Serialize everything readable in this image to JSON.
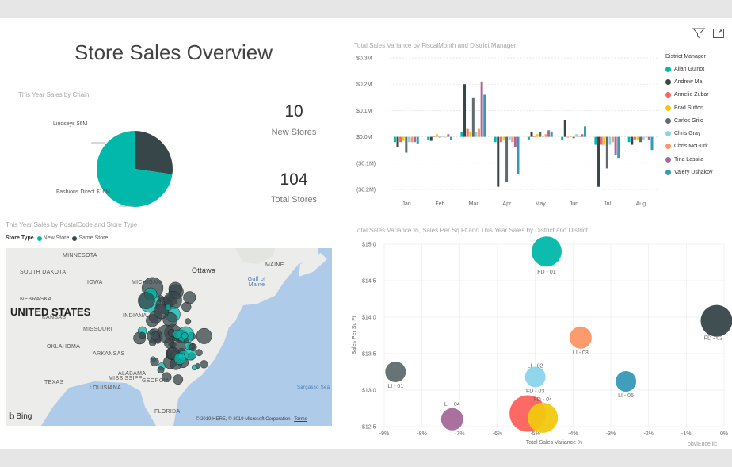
{
  "report": {
    "title": "Store Sales Overview"
  },
  "pie": {
    "title": "This Year Sales by Chain",
    "slices": [
      {
        "label": "Lindseys $6M",
        "value": 6,
        "color": "#374649"
      },
      {
        "label": "Fashions Direct $16M",
        "value": 16,
        "color": "#01b8aa"
      }
    ]
  },
  "kpis": {
    "new_stores": {
      "value": "10",
      "label": "New Stores"
    },
    "total_stores": {
      "value": "104",
      "label": "Total Stores"
    }
  },
  "map": {
    "title": "This Year Sales by PostalCode and Store Type",
    "legend_label": "Store Type",
    "legend_items": [
      {
        "label": "New Store",
        "color": "#01b8aa"
      },
      {
        "label": "Same Store",
        "color": "#374649"
      }
    ],
    "places": [
      "MINNESOTA",
      "SOUTH DAKOTA",
      "IOWA",
      "NEBRASKA",
      "KANSAS",
      "MISSOURI",
      "OKLAHOMA",
      "ARKANSAS",
      "TEXAS",
      "LOUISIANA",
      "MISSISSIPPI",
      "ALABAMA",
      "GEORGIA",
      "FLORIDA",
      "INDIANA",
      "MICHIGAN",
      "MAINE",
      "Ottawa",
      "Gulf of Maine",
      "Sargasso Sea"
    ],
    "country": "UNITED STATES",
    "bing": "Bing",
    "copyright": "© 2019 HERE, © 2019 Microsoft Corporation",
    "terms": "Terms"
  },
  "toolbar": {
    "filter_icon": "funnel-icon",
    "focus_icon": "focus-mode-icon"
  },
  "footer": {
    "text": "obviEnce llc"
  },
  "bar_chart_data": {
    "type": "bar",
    "title": "Total Sales Variance by FiscalMonth and District Manager",
    "categories": [
      "Jan",
      "Feb",
      "Mar",
      "Apr",
      "May",
      "Jun",
      "Jul",
      "Aug"
    ],
    "yticks": [
      "$0.3M",
      "$0.2M",
      "$0.1M",
      "$0.0M",
      "($0.1M)",
      "($0.2M)"
    ],
    "ylim": [
      -0.2,
      0.3
    ],
    "legend_title": "District Manager",
    "series": [
      {
        "name": "Allan Guinot",
        "color": "#01b8aa",
        "values": [
          -0.02,
          -0.01,
          0.02,
          -0.02,
          -0.01,
          -0.01,
          -0.03,
          -0.02
        ]
      },
      {
        "name": "Andrew Ma",
        "color": "#374649",
        "values": [
          -0.04,
          -0.015,
          0.2,
          -0.19,
          0.02,
          0.065,
          -0.19,
          -0.03
        ]
      },
      {
        "name": "Annelie Zubar",
        "color": "#fd625e",
        "values": [
          -0.02,
          0.005,
          0.03,
          -0.02,
          0.005,
          0.0,
          -0.03,
          -0.01
        ]
      },
      {
        "name": "Brad Sutton",
        "color": "#f2c80f",
        "values": [
          -0.015,
          0.01,
          0.02,
          -0.01,
          0.01,
          0.005,
          -0.03,
          -0.01
        ]
      },
      {
        "name": "Carlos Grilo",
        "color": "#5f6b6d",
        "values": [
          -0.06,
          0.0,
          0.15,
          -0.17,
          0.02,
          -0.005,
          -0.12,
          -0.02
        ]
      },
      {
        "name": "Chris Gray",
        "color": "#8ad4eb",
        "values": [
          -0.02,
          0.005,
          0.02,
          -0.01,
          0.005,
          0.01,
          -0.03,
          -0.01
        ]
      },
      {
        "name": "Chris McGurk",
        "color": "#fe9666",
        "values": [
          -0.02,
          0.0,
          0.03,
          -0.02,
          0.01,
          0.005,
          -0.02,
          0.0
        ]
      },
      {
        "name": "Tina Lassila",
        "color": "#a66999",
        "values": [
          -0.02,
          0.01,
          0.21,
          -0.04,
          0.025,
          0.01,
          -0.07,
          -0.01
        ]
      },
      {
        "name": "Valery Ushakov",
        "color": "#3599b8",
        "values": [
          -0.025,
          -0.01,
          0.16,
          -0.14,
          0.02,
          0.04,
          -0.08,
          -0.05
        ]
      }
    ]
  },
  "scatter_chart_data": {
    "type": "scatter",
    "title": "Total Sales Variance %, Sales Per Sq Ft and This Year Sales by District and District",
    "xlabel": "Total Sales Variance %",
    "ylabel": "Sales Per Sq Ft",
    "xlim": [
      -9,
      0
    ],
    "ylim": [
      12.5,
      15.0
    ],
    "xticks": [
      "-9%",
      "-8%",
      "-7%",
      "-6%",
      "-5%",
      "-4%",
      "-3%",
      "-2%",
      "-1%",
      "0%"
    ],
    "yticks": [
      "$15.0",
      "$14.5",
      "$14.0",
      "$13.5",
      "$13.0",
      "$12.5"
    ],
    "points": [
      {
        "label": "FD - 01",
        "x": -4.7,
        "y": 14.9,
        "size": 19,
        "color": "#01b8aa"
      },
      {
        "label": "FD - 02",
        "x": -0.2,
        "y": 13.95,
        "size": 20,
        "color": "#374649"
      },
      {
        "label": "LI - 03",
        "x": -3.8,
        "y": 13.72,
        "size": 14,
        "color": "#fe9666"
      },
      {
        "label": "LI - 02",
        "x": -5.0,
        "y": 13.18,
        "size": 13,
        "color": "#8ad4eb"
      },
      {
        "label": "FD - 03",
        "x": -5.0,
        "y": 13.18,
        "size": 0,
        "color": "#8ad4eb"
      },
      {
        "label": "LI - 01",
        "x": -8.7,
        "y": 13.25,
        "size": 13,
        "color": "#5f6b6d"
      },
      {
        "label": "LI - 05",
        "x": -2.6,
        "y": 13.12,
        "size": 13,
        "color": "#3599b8"
      },
      {
        "label": "LI - 04",
        "x": -7.2,
        "y": 12.6,
        "size": 14,
        "color": "#a66999"
      },
      {
        "label": "",
        "x": -5.2,
        "y": 12.68,
        "size": 23,
        "color": "#fd625e"
      },
      {
        "label": "FD - 04",
        "x": -4.8,
        "y": 12.62,
        "size": 19,
        "color": "#f2c80f"
      }
    ]
  }
}
